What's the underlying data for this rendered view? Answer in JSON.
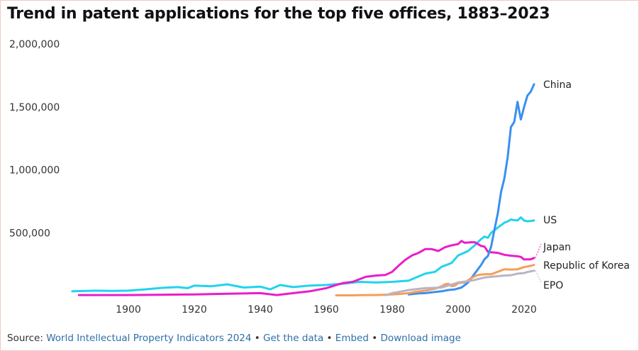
{
  "title": "Trend in patent applications for the top five offices, 1883–2023",
  "source": {
    "prefix": "Source: ",
    "report_link": "World Intellectual Property Indicators 2024",
    "sep1": " • ",
    "data_link": "Get the data",
    "sep2": " • ",
    "embed_link": "Embed",
    "sep3": "  • ",
    "download_link": "Download image"
  },
  "chart_data": {
    "type": "line",
    "xlabel": "",
    "ylabel": "",
    "xlim": [
      1880,
      2025
    ],
    "ylim": [
      0,
      2000000
    ],
    "x_ticks": [
      1900,
      1920,
      1940,
      1960,
      1980,
      2000,
      2020
    ],
    "y_ticks": [
      500000,
      1000000,
      1500000,
      2000000
    ],
    "y_tick_labels": [
      "500,000",
      "1,000,000",
      "1,500,000",
      "2,000,000"
    ],
    "grid": false,
    "legend": "direct labels at right end of lines",
    "series": [
      {
        "name": "US",
        "color": "#22d3ee",
        "points": [
          [
            1883,
            35000
          ],
          [
            1890,
            40000
          ],
          [
            1895,
            38000
          ],
          [
            1900,
            40000
          ],
          [
            1905,
            50000
          ],
          [
            1910,
            62000
          ],
          [
            1915,
            68000
          ],
          [
            1918,
            60000
          ],
          [
            1920,
            80000
          ],
          [
            1925,
            75000
          ],
          [
            1930,
            90000
          ],
          [
            1935,
            65000
          ],
          [
            1940,
            72000
          ],
          [
            1943,
            50000
          ],
          [
            1946,
            85000
          ],
          [
            1950,
            68000
          ],
          [
            1955,
            80000
          ],
          [
            1960,
            85000
          ],
          [
            1965,
            95000
          ],
          [
            1970,
            110000
          ],
          [
            1975,
            105000
          ],
          [
            1980,
            110000
          ],
          [
            1985,
            120000
          ],
          [
            1990,
            175000
          ],
          [
            1993,
            190000
          ],
          [
            1995,
            230000
          ],
          [
            1998,
            260000
          ],
          [
            2000,
            320000
          ],
          [
            2003,
            355000
          ],
          [
            2005,
            400000
          ],
          [
            2007,
            450000
          ],
          [
            2008,
            470000
          ],
          [
            2009,
            460000
          ],
          [
            2010,
            500000
          ],
          [
            2012,
            540000
          ],
          [
            2014,
            580000
          ],
          [
            2015,
            590000
          ],
          [
            2016,
            605000
          ],
          [
            2017,
            600000
          ],
          [
            2018,
            598000
          ],
          [
            2019,
            622000
          ],
          [
            2020,
            597000
          ],
          [
            2021,
            591000
          ],
          [
            2022,
            594000
          ],
          [
            2023,
            598000
          ]
        ]
      },
      {
        "name": "Japan",
        "color": "#e81ec9",
        "points": [
          [
            1885,
            5000
          ],
          [
            1900,
            5000
          ],
          [
            1920,
            10000
          ],
          [
            1930,
            15000
          ],
          [
            1940,
            20000
          ],
          [
            1945,
            5000
          ],
          [
            1950,
            20000
          ],
          [
            1955,
            35000
          ],
          [
            1960,
            60000
          ],
          [
            1963,
            85000
          ],
          [
            1965,
            100000
          ],
          [
            1968,
            110000
          ],
          [
            1970,
            130000
          ],
          [
            1972,
            150000
          ],
          [
            1975,
            160000
          ],
          [
            1978,
            165000
          ],
          [
            1980,
            190000
          ],
          [
            1982,
            240000
          ],
          [
            1984,
            285000
          ],
          [
            1986,
            320000
          ],
          [
            1988,
            340000
          ],
          [
            1990,
            370000
          ],
          [
            1992,
            370000
          ],
          [
            1994,
            355000
          ],
          [
            1996,
            385000
          ],
          [
            1998,
            400000
          ],
          [
            2000,
            410000
          ],
          [
            2001,
            435000
          ],
          [
            2002,
            420000
          ],
          [
            2004,
            425000
          ],
          [
            2005,
            425000
          ],
          [
            2006,
            410000
          ],
          [
            2007,
            395000
          ],
          [
            2008,
            390000
          ],
          [
            2009,
            350000
          ],
          [
            2010,
            345000
          ],
          [
            2012,
            340000
          ],
          [
            2014,
            325000
          ],
          [
            2016,
            318000
          ],
          [
            2018,
            313000
          ],
          [
            2019,
            308000
          ],
          [
            2020,
            288000
          ],
          [
            2021,
            289000
          ],
          [
            2022,
            289000
          ],
          [
            2023,
            300000
          ]
        ]
      },
      {
        "name": "China",
        "color": "#3b8ff0",
        "points": [
          [
            1985,
            10000
          ],
          [
            1988,
            18000
          ],
          [
            1990,
            20000
          ],
          [
            1993,
            30000
          ],
          [
            1995,
            35000
          ],
          [
            1997,
            45000
          ],
          [
            1999,
            50000
          ],
          [
            2001,
            65000
          ],
          [
            2003,
            105000
          ],
          [
            2005,
            175000
          ],
          [
            2006,
            210000
          ],
          [
            2007,
            245000
          ],
          [
            2008,
            290000
          ],
          [
            2009,
            315000
          ],
          [
            2010,
            390000
          ],
          [
            2011,
            525000
          ],
          [
            2012,
            650000
          ],
          [
            2013,
            825000
          ],
          [
            2014,
            930000
          ],
          [
            2015,
            1100000
          ],
          [
            2016,
            1340000
          ],
          [
            2017,
            1380000
          ],
          [
            2018,
            1540000
          ],
          [
            2019,
            1400000
          ],
          [
            2020,
            1500000
          ],
          [
            2021,
            1590000
          ],
          [
            2022,
            1620000
          ],
          [
            2023,
            1680000
          ]
        ]
      },
      {
        "name": "Republic of Korea",
        "color": "#f59e5b",
        "points": [
          [
            1963,
            3000
          ],
          [
            1964,
            3000
          ],
          [
            1966,
            3000
          ],
          [
            1967,
            3000
          ],
          [
            1968,
            3000
          ],
          [
            1970,
            4000
          ],
          [
            1972,
            5000
          ],
          [
            1975,
            5000
          ],
          [
            1978,
            8000
          ],
          [
            1980,
            10000
          ],
          [
            1983,
            15000
          ],
          [
            1985,
            20000
          ],
          [
            1987,
            30000
          ],
          [
            1990,
            40000
          ],
          [
            1993,
            55000
          ],
          [
            1995,
            75000
          ],
          [
            1996,
            90000
          ],
          [
            1997,
            95000
          ],
          [
            1998,
            75000
          ],
          [
            1999,
            80000
          ],
          [
            2000,
            100000
          ],
          [
            2002,
            105000
          ],
          [
            2004,
            140000
          ],
          [
            2006,
            165000
          ],
          [
            2008,
            170000
          ],
          [
            2010,
            170000
          ],
          [
            2012,
            190000
          ],
          [
            2014,
            210000
          ],
          [
            2016,
            208000
          ],
          [
            2018,
            210000
          ],
          [
            2020,
            227000
          ],
          [
            2022,
            237000
          ],
          [
            2023,
            244000
          ]
        ]
      },
      {
        "name": "EPO",
        "color": "#b9b4c4",
        "points": [
          [
            1978,
            4000
          ],
          [
            1980,
            20000
          ],
          [
            1982,
            30000
          ],
          [
            1985,
            45000
          ],
          [
            1990,
            60000
          ],
          [
            1995,
            65000
          ],
          [
            2000,
            105000
          ],
          [
            2003,
            115000
          ],
          [
            2005,
            125000
          ],
          [
            2008,
            145000
          ],
          [
            2010,
            150000
          ],
          [
            2012,
            155000
          ],
          [
            2014,
            160000
          ],
          [
            2016,
            163000
          ],
          [
            2018,
            175000
          ],
          [
            2020,
            180000
          ],
          [
            2021,
            188000
          ],
          [
            2022,
            193000
          ],
          [
            2023,
            199000
          ]
        ]
      }
    ]
  }
}
